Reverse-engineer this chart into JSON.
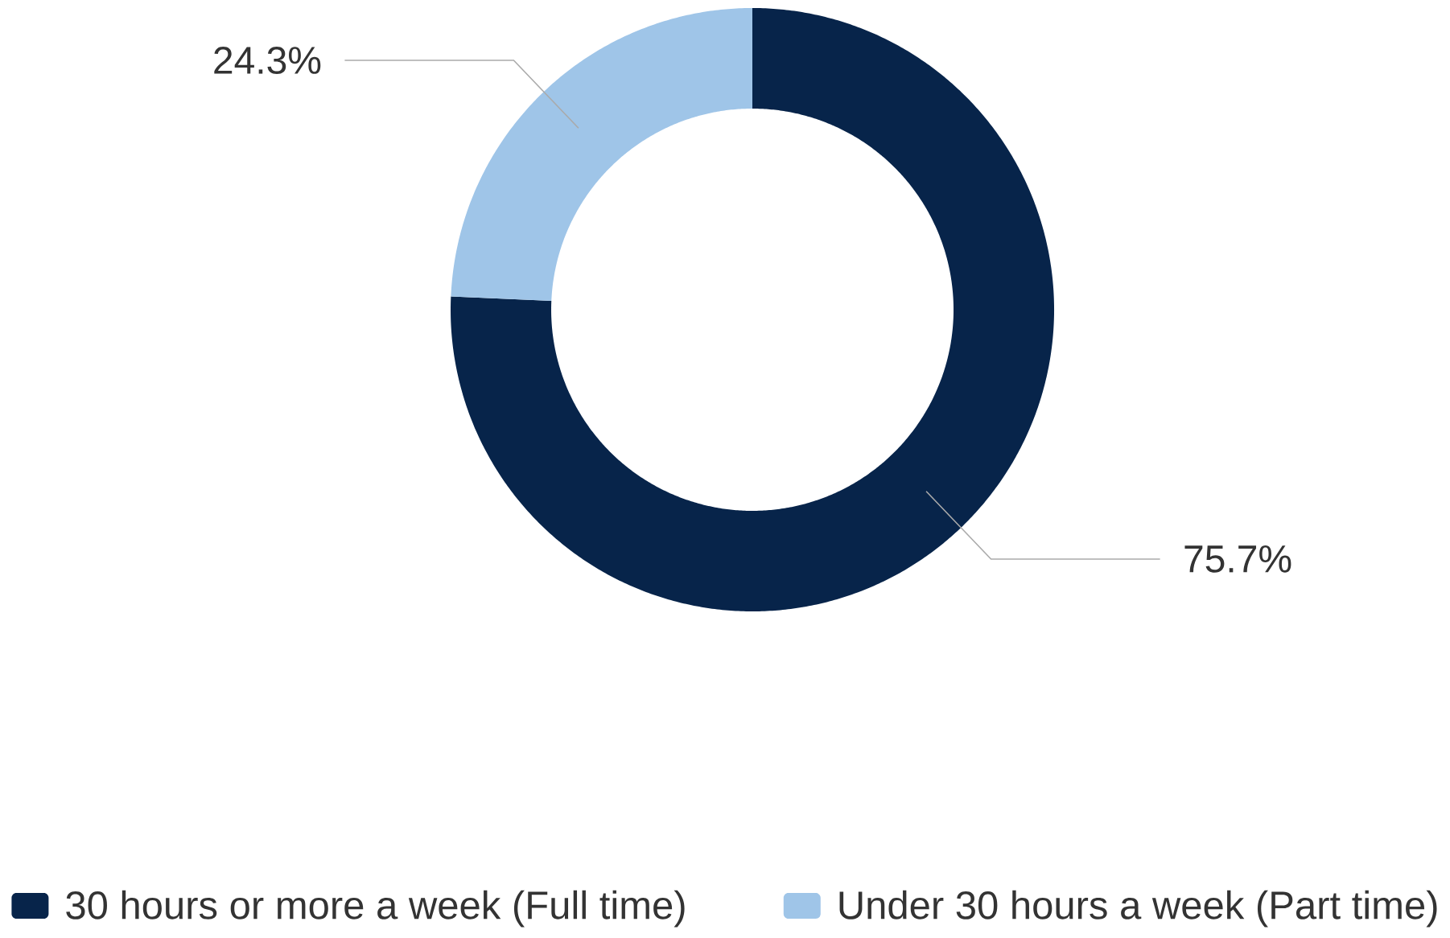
{
  "chart_data": {
    "type": "donut",
    "categories": [
      "30 hours or more a week (Full time)",
      "Under 30 hours a week (Part time)"
    ],
    "values": [
      75.7,
      24.3
    ],
    "colors": [
      "#07244a",
      "#9fc5e8"
    ],
    "value_labels": [
      "75.7%",
      "24.3%"
    ],
    "legend": "bottom"
  }
}
